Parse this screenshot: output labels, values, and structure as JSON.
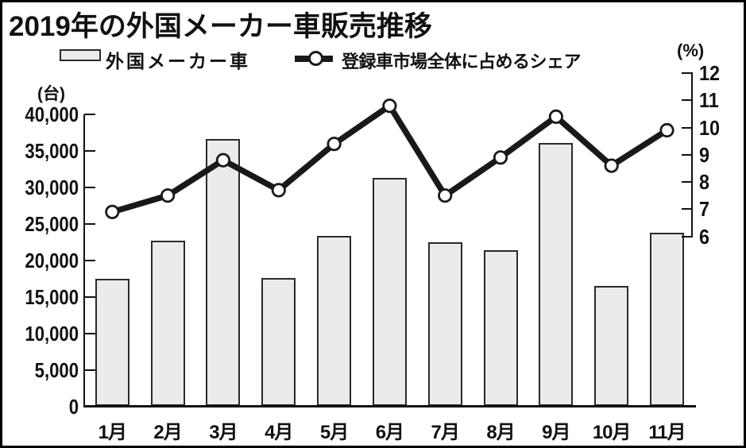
{
  "figure": {
    "title": "2019年の外国メーカー車販売推移"
  },
  "legend": {
    "bar_label": "外国メーカー車",
    "line_label": "登録車市場全体に占めるシェア"
  },
  "axes": {
    "left_unit": "(台)",
    "right_unit": "(%)"
  },
  "chart_data": {
    "type": "bar+line",
    "title": "2019年の外国メーカー車販売推移",
    "categories": [
      "1月",
      "2月",
      "3月",
      "4月",
      "5月",
      "6月",
      "7月",
      "8月",
      "9月",
      "10月",
      "11月"
    ],
    "series": [
      {
        "name": "外国メーカー車",
        "type": "bar",
        "axis": "left",
        "unit": "台",
        "values": [
          17400,
          22700,
          36600,
          17600,
          23300,
          31200,
          22400,
          21400,
          36000,
          16500,
          23700
        ]
      },
      {
        "name": "登録車市場全体に占めるシェア",
        "type": "line",
        "axis": "right",
        "unit": "%",
        "values": [
          6.9,
          7.5,
          8.8,
          7.7,
          9.4,
          10.8,
          7.5,
          8.9,
          10.4,
          8.6,
          9.9
        ]
      }
    ],
    "left_axis": {
      "label": "(台)",
      "min": 0,
      "max": 40000,
      "step": 5000,
      "tick_labels": [
        "40,000",
        "35,000",
        "30,000",
        "25,000",
        "20,000",
        "15,000",
        "10,000",
        "5,000",
        "0"
      ]
    },
    "right_axis": {
      "label": "(%)",
      "min": 6,
      "max": 12,
      "step": 1,
      "tick_labels": [
        "12",
        "11",
        "10",
        "9",
        "8",
        "7",
        "6"
      ]
    },
    "grid": false,
    "legend_position": "top",
    "colors": {
      "bar_fill": "#ebebeb",
      "bar_border": "#2a2a2a",
      "line": "#191919",
      "marker_fill": "#ffffff",
      "text": "#111111"
    }
  }
}
